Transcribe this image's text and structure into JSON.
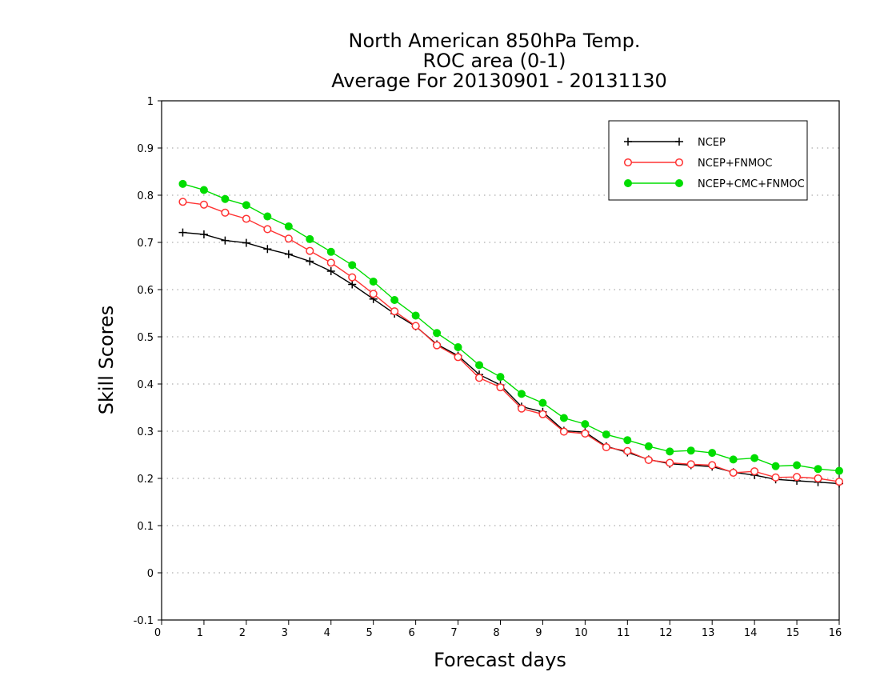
{
  "chart_data": {
    "type": "line",
    "title": [
      "North American 850hPa Temp.",
      "ROC area (0-1)",
      "Average For 20130901 - 20131130"
    ],
    "xlabel": "Forecast days",
    "ylabel": "Skill Scores",
    "xlim": [
      0,
      16
    ],
    "ylim": [
      -0.1,
      1
    ],
    "xticks": [
      "0",
      "1",
      "2",
      "3",
      "4",
      "5",
      "6",
      "7",
      "8",
      "9",
      "10",
      "11",
      "12",
      "13",
      "14",
      "15",
      "16"
    ],
    "yticks": [
      "-0.1",
      "0",
      "0.1",
      "0.2",
      "0.3",
      "0.4",
      "0.5",
      "0.6",
      "0.7",
      "0.8",
      "0.9",
      "1"
    ],
    "grid": true,
    "legend_position": "top-right",
    "x": [
      0.5,
      1,
      1.5,
      2,
      2.5,
      3,
      3.5,
      4,
      4.5,
      5,
      5.5,
      6,
      6.5,
      7,
      7.5,
      8,
      8.5,
      9,
      9.5,
      10,
      10.5,
      11,
      11.5,
      12,
      12.5,
      13,
      13.5,
      14,
      14.5,
      15,
      15.5,
      16
    ],
    "series": [
      {
        "name": "NCEP",
        "color": "#000000",
        "marker": "plus",
        "values": [
          0.721,
          0.717,
          0.704,
          0.699,
          0.686,
          0.675,
          0.66,
          0.639,
          0.611,
          0.58,
          0.549,
          0.522,
          0.484,
          0.46,
          0.42,
          0.398,
          0.352,
          0.341,
          0.301,
          0.298,
          0.268,
          0.255,
          0.24,
          0.231,
          0.228,
          0.225,
          0.213,
          0.207,
          0.198,
          0.195,
          0.192,
          0.189
        ]
      },
      {
        "name": "NCEP+FNMOC",
        "color": "#ff3333",
        "marker": "open-circle",
        "values": [
          0.786,
          0.78,
          0.763,
          0.75,
          0.728,
          0.708,
          0.682,
          0.657,
          0.626,
          0.591,
          0.554,
          0.523,
          0.482,
          0.457,
          0.413,
          0.393,
          0.348,
          0.336,
          0.299,
          0.295,
          0.266,
          0.258,
          0.239,
          0.233,
          0.23,
          0.228,
          0.212,
          0.215,
          0.202,
          0.203,
          0.2,
          0.193
        ]
      },
      {
        "name": "NCEP+CMC+FNMOC",
        "color": "#00dd00",
        "marker": "filled-circle",
        "values": [
          0.824,
          0.811,
          0.792,
          0.779,
          0.755,
          0.734,
          0.707,
          0.68,
          0.652,
          0.617,
          0.578,
          0.545,
          0.508,
          0.478,
          0.44,
          0.415,
          0.379,
          0.36,
          0.328,
          0.315,
          0.293,
          0.281,
          0.268,
          0.257,
          0.259,
          0.254,
          0.24,
          0.243,
          0.226,
          0.228,
          0.22,
          0.216
        ]
      }
    ]
  }
}
